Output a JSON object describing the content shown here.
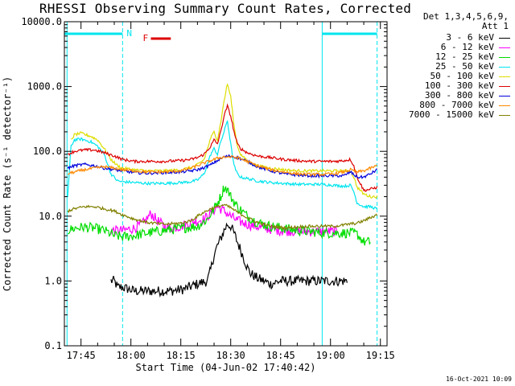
{
  "chart_data": {
    "type": "line",
    "title": "RHESSI Observing Summary Count Rates, Corrected",
    "xlabel": "Start Time (04-Jun-02 17:40:42)",
    "ylabel": "Corrected Count Rate (s⁻¹ detector⁻¹)",
    "y_scale": "log",
    "ylim": [
      0.1,
      10000
    ],
    "xlim_minutes_from_1740": [
      0,
      97
    ],
    "x_tick_labels": [
      "17:45",
      "18:00",
      "18:15",
      "18:30",
      "18:45",
      "19:00",
      "19:15"
    ],
    "y_tick_labels": [
      "0.1",
      "1.0",
      "10.0",
      "100.0",
      "1000.0",
      "10000.0"
    ],
    "legend": {
      "header": [
        "Det 1,3,4,5,6,9,",
        "Att 1"
      ],
      "placement": "right"
    },
    "flags": [
      {
        "label": "N",
        "color": "#00e5ee",
        "segments_minutes": [
          [
            0,
            17.5
          ],
          [
            77.5,
            94
          ]
        ]
      },
      {
        "label": "F",
        "color": "#dd0000",
        "segments_minutes": [
          [
            26,
            32
          ]
        ]
      }
    ],
    "vertical_markers_minutes": {
      "solid": [
        0.8,
        77.5
      ],
      "dashed": [
        17.5,
        94
      ]
    },
    "data_gaps_minutes": [
      [
        17.5,
        77.5
      ]
    ],
    "series": [
      {
        "name": "3 - 6 keV",
        "color": "#000000",
        "x": [
          14,
          15,
          16,
          17.5,
          21,
          25,
          28,
          32,
          36,
          40,
          43,
          44,
          45,
          46,
          47,
          48,
          49,
          50,
          51,
          52,
          53,
          54,
          55,
          56,
          57,
          58,
          60,
          62,
          65,
          70,
          75,
          80,
          85
        ],
        "y": [
          1.0,
          1.0,
          0.8,
          0.8,
          0.7,
          0.7,
          0.7,
          0.7,
          0.75,
          0.9,
          1.0,
          1.5,
          2.5,
          3.5,
          4.5,
          6.0,
          7.5,
          7.0,
          5.5,
          4.0,
          3.0,
          2.2,
          1.6,
          1.3,
          1.2,
          1.1,
          1.0,
          0.9,
          1.0,
          1.0,
          1.0,
          1.0,
          1.0
        ]
      },
      {
        "name": "6 - 12 keV",
        "color": "#ff00ff",
        "x": [
          14,
          17.5,
          21,
          24,
          26,
          28,
          30,
          32,
          35,
          38,
          40,
          42,
          44,
          46,
          48,
          50,
          52,
          55,
          60,
          65,
          70,
          75,
          80,
          82
        ],
        "y": [
          6.0,
          6.0,
          6.5,
          8.0,
          11,
          8.5,
          7.0,
          6.5,
          7.0,
          8.0,
          8.5,
          9.0,
          11,
          14,
          12,
          10,
          8.5,
          7.5,
          6.5,
          6.0,
          5.8,
          5.8,
          5.8,
          5.8
        ]
      },
      {
        "name": "12 - 25 keV",
        "color": "#00dd00",
        "x": [
          1,
          3,
          6,
          9,
          12,
          15,
          17.5,
          21,
          25,
          30,
          35,
          40,
          43,
          45,
          47,
          48,
          49,
          50,
          52,
          55,
          58,
          62,
          66,
          70,
          74,
          77.5,
          81,
          84,
          86,
          88,
          90,
          92
        ],
        "y": [
          6.0,
          6.5,
          6.8,
          6.5,
          6.0,
          5.0,
          4.8,
          5.0,
          5.5,
          6.0,
          6.5,
          7.0,
          9.0,
          13,
          20,
          28,
          26,
          20,
          14,
          10,
          8.0,
          7.0,
          6.5,
          6.0,
          5.8,
          5.5,
          5.5,
          5.5,
          5.5,
          5.3,
          4.0,
          4.0
        ]
      },
      {
        "name": "25 - 50 keV",
        "color": "#00e5ee",
        "x": [
          1,
          2,
          3,
          5,
          8,
          10,
          12,
          14,
          16,
          17.5,
          21,
          25,
          30,
          35,
          38,
          40,
          42,
          44,
          45,
          46,
          47,
          48,
          49,
          50,
          51,
          52,
          53,
          55,
          58,
          62,
          66,
          70,
          74,
          77.5,
          81,
          84,
          86,
          87,
          88,
          90,
          92,
          94
        ],
        "y": [
          20,
          120,
          150,
          155,
          140,
          120,
          90,
          45,
          35,
          34,
          33,
          32,
          32,
          33,
          34,
          36,
          45,
          90,
          110,
          90,
          140,
          200,
          300,
          130,
          60,
          45,
          40,
          38,
          35,
          33,
          32,
          31,
          31,
          31,
          30,
          29,
          30,
          24,
          16,
          14,
          14,
          13
        ]
      },
      {
        "name": "50 - 100 keV",
        "color": "#dddd00",
        "x": [
          2,
          3,
          5,
          8,
          10,
          12,
          14,
          16,
          17.5,
          21,
          25,
          30,
          35,
          38,
          40,
          42,
          44,
          45,
          46,
          47,
          48,
          49,
          50,
          51,
          52,
          53,
          55,
          58,
          62,
          66,
          70,
          74,
          77.5,
          81,
          84,
          86,
          87,
          88,
          90,
          92,
          94
        ],
        "y": [
          150,
          180,
          190,
          170,
          150,
          110,
          75,
          60,
          55,
          52,
          50,
          50,
          52,
          56,
          62,
          75,
          160,
          200,
          150,
          280,
          600,
          1100,
          700,
          250,
          120,
          90,
          70,
          60,
          55,
          52,
          50,
          50,
          50,
          50,
          50,
          50,
          40,
          28,
          22,
          20,
          20
        ]
      },
      {
        "name": "100 - 300 keV",
        "color": "#dd0000",
        "x": [
          1,
          3,
          6,
          9,
          12,
          15,
          17.5,
          21,
          25,
          30,
          35,
          38,
          40,
          42,
          44,
          45,
          46,
          47,
          48,
          49,
          50,
          51,
          52,
          53,
          55,
          58,
          62,
          66,
          70,
          74,
          77.5,
          81,
          84,
          86,
          87,
          88,
          90,
          92,
          94
        ],
        "y": [
          90,
          100,
          105,
          105,
          95,
          85,
          75,
          70,
          70,
          70,
          72,
          75,
          80,
          90,
          120,
          150,
          130,
          200,
          350,
          500,
          350,
          200,
          130,
          110,
          95,
          85,
          80,
          75,
          72,
          70,
          70,
          70,
          72,
          75,
          60,
          40,
          25,
          26,
          28
        ]
      },
      {
        "name": "300 - 800 keV",
        "color": "#0000dd",
        "x": [
          1,
          3,
          6,
          9,
          12,
          15,
          17.5,
          21,
          25,
          30,
          35,
          38,
          40,
          42,
          44,
          46,
          48,
          50,
          52,
          55,
          58,
          62,
          66,
          70,
          74,
          77.5,
          81,
          84,
          86,
          88,
          90,
          92,
          94
        ],
        "y": [
          55,
          60,
          63,
          60,
          55,
          52,
          50,
          47,
          46,
          47,
          48,
          50,
          52,
          56,
          62,
          72,
          82,
          85,
          80,
          70,
          58,
          50,
          45,
          43,
          42,
          42,
          42,
          42,
          48,
          40,
          40,
          45,
          52
        ]
      },
      {
        "name": "800 - 7000 keV",
        "color": "#ff8800",
        "x": [
          1,
          3,
          6,
          9,
          12,
          15,
          17.5,
          21,
          25,
          30,
          35,
          38,
          40,
          42,
          44,
          46,
          48,
          50,
          52,
          55,
          58,
          62,
          66,
          70,
          74,
          77.5,
          81,
          84,
          86,
          88,
          90,
          92,
          94
        ],
        "y": [
          45,
          48,
          52,
          55,
          58,
          55,
          52,
          50,
          48,
          48,
          50,
          55,
          60,
          66,
          72,
          78,
          82,
          82,
          80,
          70,
          60,
          52,
          48,
          45,
          44,
          44,
          45,
          48,
          52,
          48,
          50,
          55,
          60
        ]
      },
      {
        "name": "7000 - 15000 keV",
        "color": "#808000",
        "x": [
          1,
          3,
          6,
          9,
          12,
          15,
          17.5,
          21,
          25,
          30,
          35,
          38,
          40,
          42,
          44,
          46,
          48,
          50,
          52,
          55,
          58,
          62,
          66,
          70,
          74,
          77.5,
          81,
          84,
          86,
          88,
          90,
          92,
          94
        ],
        "y": [
          12,
          13,
          14,
          14,
          13,
          12,
          10.5,
          9.0,
          8.0,
          7.5,
          7.8,
          8.5,
          10,
          11.5,
          13,
          14,
          15,
          13.5,
          11.5,
          9.5,
          8.0,
          7.0,
          6.6,
          6.8,
          7.0,
          7.0,
          7.0,
          7.3,
          7.6,
          7.8,
          8.5,
          9.5,
          10.5
        ]
      }
    ]
  },
  "timestamp": "16-Oct-2021 10:09"
}
